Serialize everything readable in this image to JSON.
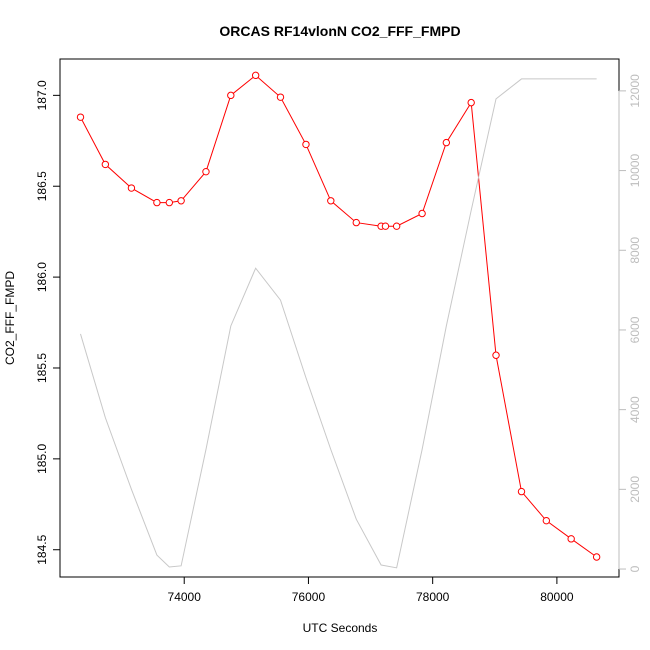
{
  "chart_data": {
    "type": "line",
    "title": "ORCAS RF14vlonN CO2_FFF_FMPD",
    "xlabel": "UTC Seconds",
    "ylabel": "CO2_FFF_FMPD",
    "xlim": [
      72000,
      81000
    ],
    "ylim": [
      184.35,
      187.2
    ],
    "y2lim": [
      -200,
      12800
    ],
    "x_ticks": [
      74000,
      76000,
      78000,
      80000
    ],
    "y_ticks": [
      184.5,
      185.0,
      185.5,
      186.0,
      186.5,
      187.0
    ],
    "y2_ticks": [
      0,
      2000,
      4000,
      6000,
      8000,
      10000,
      12000
    ],
    "grid": false,
    "series": [
      {
        "axis": "left",
        "color": "#ff0000",
        "marker": "open-circle",
        "x": [
          72330,
          72730,
          73150,
          73560,
          73760,
          73950,
          74350,
          74750,
          75150,
          75550,
          75960,
          76360,
          76770,
          77170,
          77240,
          77420,
          77830,
          78220,
          78620,
          79020,
          79430,
          79830,
          80230,
          80640
        ],
        "y": [
          186.88,
          186.62,
          186.49,
          186.41,
          186.41,
          186.42,
          186.58,
          187.0,
          187.11,
          186.99,
          186.73,
          186.42,
          186.3,
          186.28,
          186.28,
          186.28,
          186.35,
          186.74,
          186.96,
          185.57,
          184.82,
          184.66,
          184.56,
          184.46
        ]
      },
      {
        "axis": "right",
        "color": "#c8c8c8",
        "marker": "none",
        "x": [
          72330,
          72730,
          73150,
          73560,
          73760,
          73950,
          74350,
          74750,
          75150,
          75550,
          75960,
          76360,
          76770,
          77170,
          77420,
          77830,
          78220,
          78620,
          79020,
          79430,
          79830,
          80230,
          80640
        ],
        "y": [
          5900,
          3800,
          2000,
          350,
          50,
          80,
          3000,
          6100,
          7550,
          6750,
          4800,
          3000,
          1250,
          100,
          30,
          3000,
          6100,
          9000,
          11800,
          12300,
          12300,
          12300,
          12300
        ]
      }
    ]
  }
}
